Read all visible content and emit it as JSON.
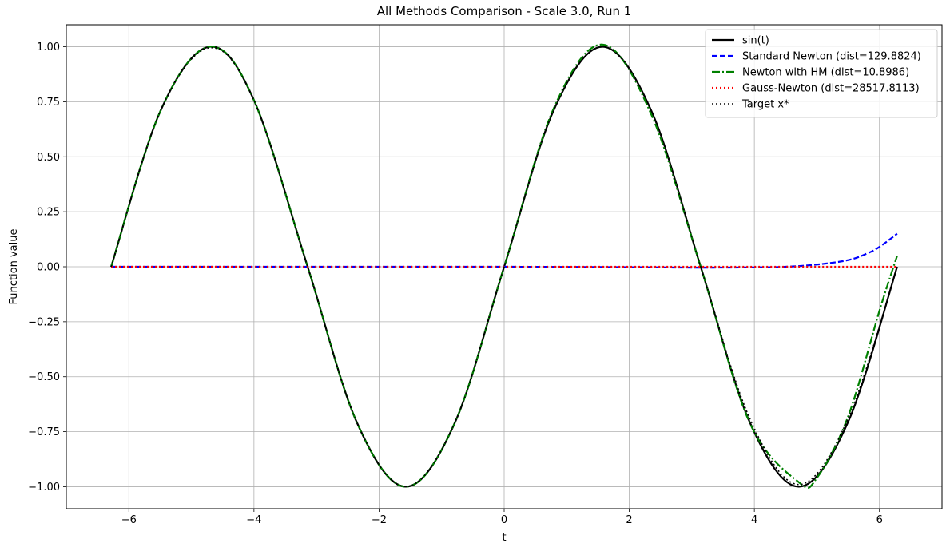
{
  "chart_data": {
    "type": "line",
    "title": "All Methods Comparison - Scale 3.0, Run 1",
    "xlabel": "t",
    "ylabel": "Function value",
    "xlim": [
      -7.0,
      7.0
    ],
    "ylim": [
      -1.1,
      1.1
    ],
    "xticks": [
      -6,
      -4,
      -2,
      0,
      2,
      4,
      6
    ],
    "xtick_labels": [
      "−6",
      "−4",
      "−2",
      "0",
      "2",
      "4",
      "6"
    ],
    "yticks": [
      -1.0,
      -0.75,
      -0.5,
      -0.25,
      0.0,
      0.25,
      0.5,
      0.75,
      1.0
    ],
    "ytick_labels": [
      "−1.00",
      "−0.75",
      "−0.50",
      "−0.25",
      "0.00",
      "0.25",
      "0.50",
      "0.75",
      "1.00"
    ],
    "grid": true,
    "legend_position": "top-right",
    "series": [
      {
        "name": "sin(t)",
        "color": "#000000",
        "style": "solid",
        "x": [
          -6.283,
          -5.5,
          -4.712,
          -4.0,
          -3.142,
          -2.356,
          -1.571,
          -0.785,
          0.0,
          0.785,
          1.571,
          2.356,
          3.142,
          3.927,
          4.712,
          5.5,
          6.283
        ],
        "y": [
          0.0,
          0.705,
          1.0,
          0.757,
          0.0,
          -0.707,
          -1.0,
          -0.707,
          0.0,
          0.707,
          1.0,
          0.707,
          0.0,
          -0.707,
          -1.0,
          -0.705,
          0.0
        ]
      },
      {
        "name": "Standard Newton (dist=129.8824)",
        "color": "#0000ff",
        "style": "dashed",
        "x": [
          -6.283,
          -4.0,
          -2.0,
          0.0,
          2.0,
          3.0,
          4.0,
          4.5,
          5.0,
          5.5,
          5.8,
          6.0,
          6.283
        ],
        "y": [
          0.0,
          0.0,
          0.0,
          0.0,
          -0.002,
          -0.004,
          -0.003,
          0.0,
          0.01,
          0.03,
          0.06,
          0.09,
          0.15
        ]
      },
      {
        "name": "Newton with HM (dist=10.8986)",
        "color": "#008000",
        "style": "dashdot",
        "x": [
          -6.283,
          -5.5,
          -4.712,
          -4.0,
          -3.142,
          -2.356,
          -1.571,
          -0.785,
          0.0,
          0.785,
          1.571,
          2.356,
          3.142,
          3.927,
          4.712,
          5.0,
          5.5,
          6.0,
          6.283
        ],
        "y": [
          0.0,
          0.705,
          1.0,
          0.757,
          0.0,
          -0.707,
          -1.0,
          -0.707,
          0.0,
          0.715,
          1.01,
          0.69,
          0.0,
          -0.71,
          -0.98,
          -0.96,
          -0.68,
          -0.2,
          0.05
        ]
      },
      {
        "name": "Gauss-Newton (dist=28517.8113)",
        "color": "#ff0000",
        "style": "dotted",
        "x": [
          -6.283,
          0.0,
          6.283
        ],
        "y": [
          0.0,
          0.0,
          0.0
        ]
      },
      {
        "name": "Target x*",
        "color": "#000000",
        "style": "dotted",
        "x": [
          -6.283,
          -5.5,
          -4.712,
          -4.0,
          -3.142,
          -2.356,
          -1.571,
          -0.785,
          0.0,
          0.785,
          1.571,
          2.356,
          3.142,
          3.927,
          4.712,
          5.5,
          6.283
        ],
        "y": [
          0.0,
          0.705,
          0.995,
          0.757,
          0.0,
          -0.707,
          -1.0,
          -0.707,
          0.0,
          0.707,
          1.0,
          0.707,
          0.0,
          -0.69,
          -0.99,
          -0.69,
          0.0
        ]
      }
    ]
  }
}
